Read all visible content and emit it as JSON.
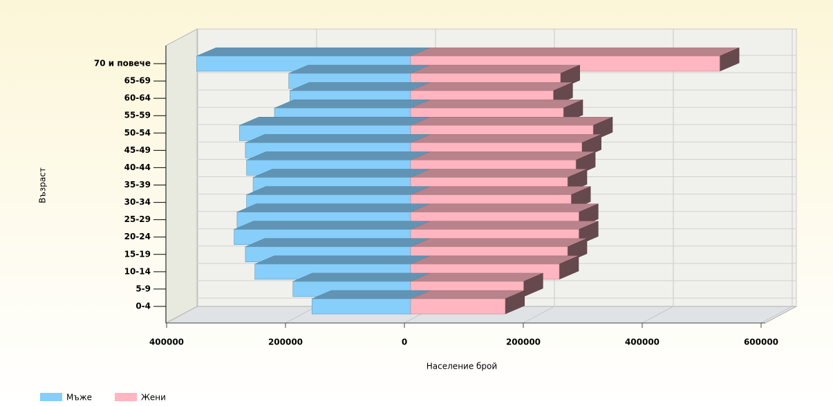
{
  "chart_data": {
    "type": "pyramid",
    "x_label": "Население брой",
    "y_label": "Възраст",
    "categories": [
      "0-4",
      "5-9",
      "10-14",
      "15-19",
      "20-24",
      "25-29",
      "30-34",
      "35-39",
      "40-44",
      "45-49",
      "50-54",
      "55-59",
      "60-64",
      "65-69",
      "70 и повече"
    ],
    "series": [
      {
        "name": "Мъже",
        "color": "#87cefa",
        "values": [
          -166000,
          -198000,
          -262000,
          -278000,
          -297000,
          -292000,
          -276000,
          -265000,
          -276000,
          -278000,
          -288000,
          -229000,
          -203000,
          -205000,
          -360000
        ]
      },
      {
        "name": "Жени",
        "color": "#ffb6c1",
        "values": [
          159000,
          190000,
          250000,
          264000,
          283000,
          283000,
          270000,
          264000,
          278000,
          288000,
          307000,
          257000,
          240000,
          252000,
          520000
        ]
      }
    ],
    "xlim": [
      -400000,
      600000
    ],
    "xticks": [
      {
        "value": -400000,
        "label": "400000"
      },
      {
        "value": -200000,
        "label": "200000"
      },
      0,
      200000,
      400000,
      600000
    ],
    "grid": true,
    "legend": "bottom-left"
  }
}
